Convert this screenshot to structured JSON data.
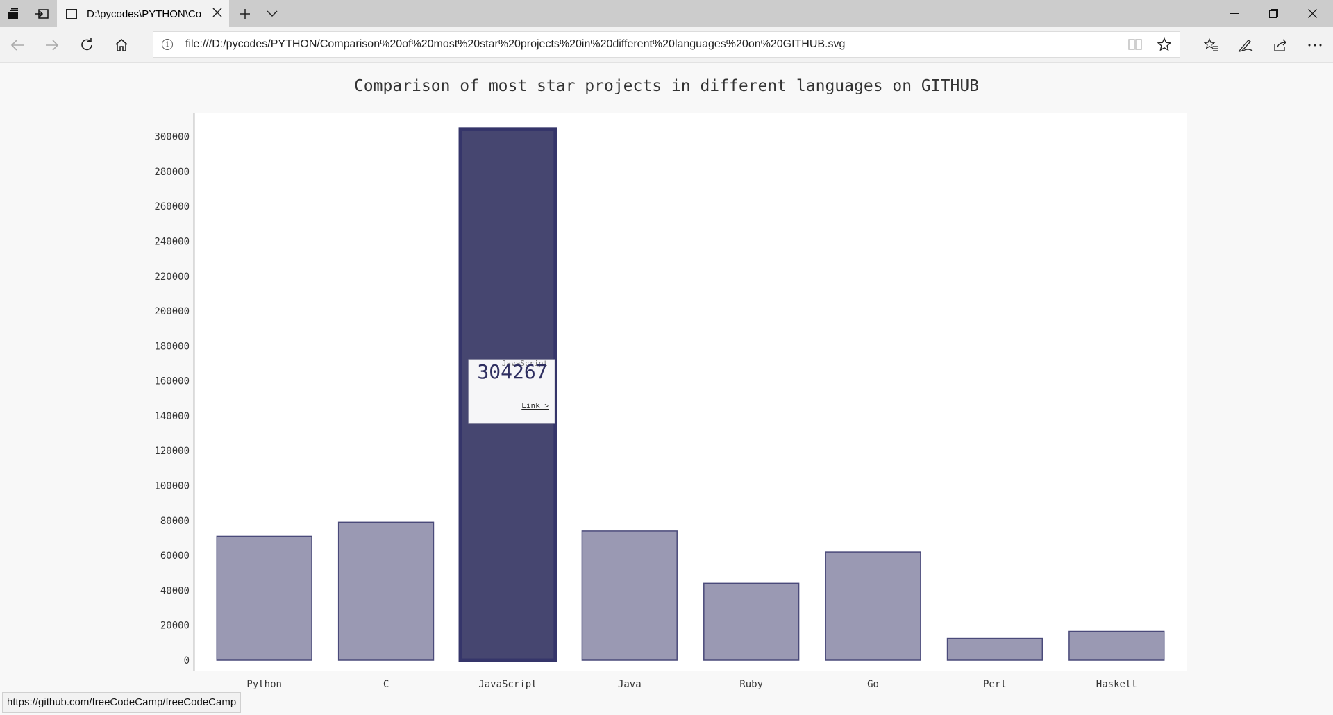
{
  "browser": {
    "tab_title": "D:\\pycodes\\PYTHON\\Co",
    "url": "file:///D:/pycodes/PYTHON/Comparison%20of%20most%20star%20projects%20in%20different%20languages%20on%20GITHUB.svg",
    "status_url": "https://github.com/freeCodeCamp/freeCodeCamp",
    "icons": {
      "tab_actions": "set-tabs-aside-icon",
      "restore_tabs": "restore-tabs-icon",
      "tab_page": "page-icon",
      "tab_close": "close-icon",
      "new_tab": "plus-icon",
      "tab_list": "chevron-down-icon",
      "back": "back-arrow-icon",
      "forward": "forward-arrow-icon",
      "refresh": "refresh-icon",
      "home": "home-icon",
      "site_info": "info-icon",
      "reading_view": "reading-view-icon",
      "favorite": "star-icon",
      "favorites_hub": "favorites-list-icon",
      "web_note": "pen-icon",
      "share": "share-icon",
      "more": "more-icon",
      "minimize": "minimize-icon",
      "restore": "restore-icon",
      "close": "window-close-icon"
    }
  },
  "chart_data": {
    "type": "bar",
    "title": "Comparison of most star projects in different languages on GITHUB",
    "xlabel": "",
    "ylabel": "",
    "categories": [
      "Python",
      "C",
      "JavaScript",
      "Java",
      "Ruby",
      "Go",
      "Perl",
      "Haskell"
    ],
    "values": [
      71000,
      79000,
      304267,
      74000,
      44000,
      62000,
      12500,
      16500
    ],
    "ylim": [
      0,
      305000
    ],
    "yticks": [
      0,
      20000,
      40000,
      60000,
      80000,
      100000,
      120000,
      140000,
      160000,
      180000,
      200000,
      220000,
      240000,
      260000,
      280000,
      300000
    ],
    "highlighted_index": 2,
    "grid": false,
    "colors": {
      "bar_fill": "#9a99b3",
      "bar_stroke": "#4a4a7a",
      "bar_fill_hover": "#464670",
      "bar_stroke_hover": "#35356a",
      "text": "#333333"
    },
    "tooltip": {
      "label": "JavaScript",
      "value": "304267",
      "link_text": "Link >"
    }
  }
}
